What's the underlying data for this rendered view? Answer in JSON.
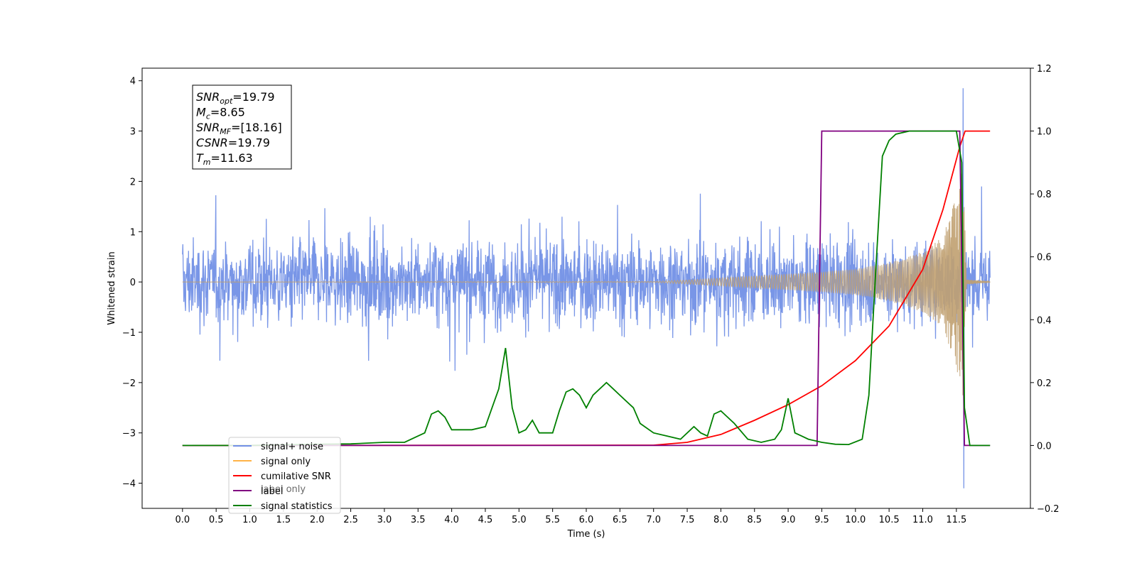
{
  "chart_data": {
    "type": "line",
    "xlabel": "Time (s)",
    "ylabel": "Whitened strain",
    "xlim": [
      -0.6,
      12.6
    ],
    "ylim": [
      -4.5,
      4.25
    ],
    "ylim_right": [
      -0.2,
      1.2
    ],
    "x_ticks": [
      "0.0",
      "0.5",
      "1.0",
      "1.5",
      "2.0",
      "2.5",
      "3.0",
      "3.5",
      "4.0",
      "4.5",
      "5.0",
      "5.5",
      "6.0",
      "6.5",
      "7.0",
      "7.5",
      "8.0",
      "8.5",
      "9.0",
      "9.5",
      "10.0",
      "10.5",
      "11.0",
      "11.5"
    ],
    "y_ticks": [
      "4",
      "3",
      "2",
      "1",
      "0",
      "−1",
      "−2",
      "−3",
      "−4"
    ],
    "y_ticks_right": [
      "1.2",
      "1.0",
      "0.8",
      "0.6",
      "0.4",
      "0.2",
      "0.0",
      "−0.2"
    ],
    "annotation": [
      {
        "base": "SNR",
        "sub": "opt",
        "rest": "=19.79"
      },
      {
        "base": "M",
        "sub": "c",
        "rest": "=8.65"
      },
      {
        "base": "SNR",
        "sub": "MF",
        "rest": "=[18.16]"
      },
      {
        "base": "CSNR",
        "sub": "",
        "rest": "=19.79"
      },
      {
        "base": "T",
        "sub": "m",
        "rest": "=11.63"
      }
    ],
    "legend_position": "lower-left",
    "legend": [
      {
        "label": "signal+ noise",
        "color": "#7290e6"
      },
      {
        "label": "signal only",
        "color": "#ffb347"
      },
      {
        "label": "cumilative SNR",
        "color": "#ff0000"
      },
      {
        "label": "label",
        "color": "#800080"
      },
      {
        "label": "signal statistics",
        "color": "#008000"
      }
    ],
    "hidden_legend_text": "label only",
    "series": [
      {
        "name": "signal+ noise",
        "axis": "left",
        "color": "#7290e6",
        "t_start": 0.0,
        "t_end": 12.0,
        "noise_std": 0.75,
        "peak_max": 3.85,
        "peak_time": 11.6,
        "peak_min": -4.1
      },
      {
        "name": "signal only",
        "axis": "left",
        "color": "#c0a070",
        "t_start": 0.0,
        "t_end": 12.0,
        "merger_time": 11.6,
        "envelope": [
          [
            0,
            0
          ],
          [
            7.0,
            0.01
          ],
          [
            7.5,
            0.04
          ],
          [
            8.0,
            0.08
          ],
          [
            8.5,
            0.12
          ],
          [
            9.0,
            0.16
          ],
          [
            9.5,
            0.2
          ],
          [
            10.0,
            0.26
          ],
          [
            10.5,
            0.38
          ],
          [
            11.0,
            0.6
          ],
          [
            11.3,
            0.9
          ],
          [
            11.5,
            1.7
          ],
          [
            11.6,
            2.3
          ],
          [
            11.65,
            0.05
          ],
          [
            12.0,
            0.01
          ]
        ]
      },
      {
        "name": "cumilative SNR",
        "axis": "right",
        "color": "#ff0000",
        "points": [
          [
            0,
            0
          ],
          [
            7.0,
            0.001
          ],
          [
            7.5,
            0.01
          ],
          [
            8.0,
            0.035
          ],
          [
            8.5,
            0.08
          ],
          [
            9.0,
            0.13
          ],
          [
            9.5,
            0.19
          ],
          [
            10.0,
            0.27
          ],
          [
            10.5,
            0.38
          ],
          [
            11.0,
            0.56
          ],
          [
            11.3,
            0.75
          ],
          [
            11.55,
            0.95
          ],
          [
            11.63,
            1.0
          ],
          [
            12.0,
            1.0
          ]
        ]
      },
      {
        "name": "label",
        "axis": "right",
        "color": "#800080",
        "points": [
          [
            0,
            0
          ],
          [
            9.43,
            0
          ],
          [
            9.5,
            1.0
          ],
          [
            11.55,
            1.0
          ],
          [
            11.62,
            0
          ],
          [
            12.0,
            0
          ]
        ]
      },
      {
        "name": "signal statistics",
        "axis": "right",
        "color": "#008000",
        "points": [
          [
            0,
            0
          ],
          [
            1.0,
            0
          ],
          [
            1.5,
            0.002
          ],
          [
            2.0,
            0.004
          ],
          [
            2.5,
            0.005
          ],
          [
            3.0,
            0.01
          ],
          [
            3.3,
            0.01
          ],
          [
            3.5,
            0.03
          ],
          [
            3.6,
            0.04
          ],
          [
            3.7,
            0.1
          ],
          [
            3.8,
            0.11
          ],
          [
            3.9,
            0.09
          ],
          [
            4.0,
            0.05
          ],
          [
            4.1,
            0.05
          ],
          [
            4.3,
            0.05
          ],
          [
            4.5,
            0.06
          ],
          [
            4.6,
            0.12
          ],
          [
            4.7,
            0.18
          ],
          [
            4.8,
            0.31
          ],
          [
            4.9,
            0.12
          ],
          [
            5.0,
            0.04
          ],
          [
            5.1,
            0.05
          ],
          [
            5.2,
            0.08
          ],
          [
            5.3,
            0.04
          ],
          [
            5.5,
            0.04
          ],
          [
            5.6,
            0.11
          ],
          [
            5.7,
            0.17
          ],
          [
            5.8,
            0.18
          ],
          [
            5.9,
            0.16
          ],
          [
            6.0,
            0.12
          ],
          [
            6.1,
            0.16
          ],
          [
            6.3,
            0.2
          ],
          [
            6.4,
            0.18
          ],
          [
            6.5,
            0.16
          ],
          [
            6.7,
            0.12
          ],
          [
            6.8,
            0.07
          ],
          [
            7.0,
            0.04
          ],
          [
            7.2,
            0.03
          ],
          [
            7.4,
            0.02
          ],
          [
            7.6,
            0.06
          ],
          [
            7.7,
            0.04
          ],
          [
            7.8,
            0.03
          ],
          [
            7.9,
            0.1
          ],
          [
            8.0,
            0.11
          ],
          [
            8.2,
            0.07
          ],
          [
            8.4,
            0.02
          ],
          [
            8.6,
            0.01
          ],
          [
            8.8,
            0.02
          ],
          [
            8.9,
            0.05
          ],
          [
            9.0,
            0.15
          ],
          [
            9.1,
            0.04
          ],
          [
            9.2,
            0.03
          ],
          [
            9.3,
            0.02
          ],
          [
            9.5,
            0.01
          ],
          [
            9.7,
            0.004
          ],
          [
            9.9,
            0.003
          ],
          [
            10.1,
            0.02
          ],
          [
            10.2,
            0.16
          ],
          [
            10.3,
            0.55
          ],
          [
            10.4,
            0.92
          ],
          [
            10.5,
            0.97
          ],
          [
            10.6,
            0.99
          ],
          [
            10.8,
            1.0
          ],
          [
            11.5,
            1.0
          ],
          [
            11.58,
            0.9
          ],
          [
            11.62,
            0.12
          ],
          [
            11.7,
            0.0
          ],
          [
            12.0,
            0.0
          ]
        ]
      }
    ]
  }
}
